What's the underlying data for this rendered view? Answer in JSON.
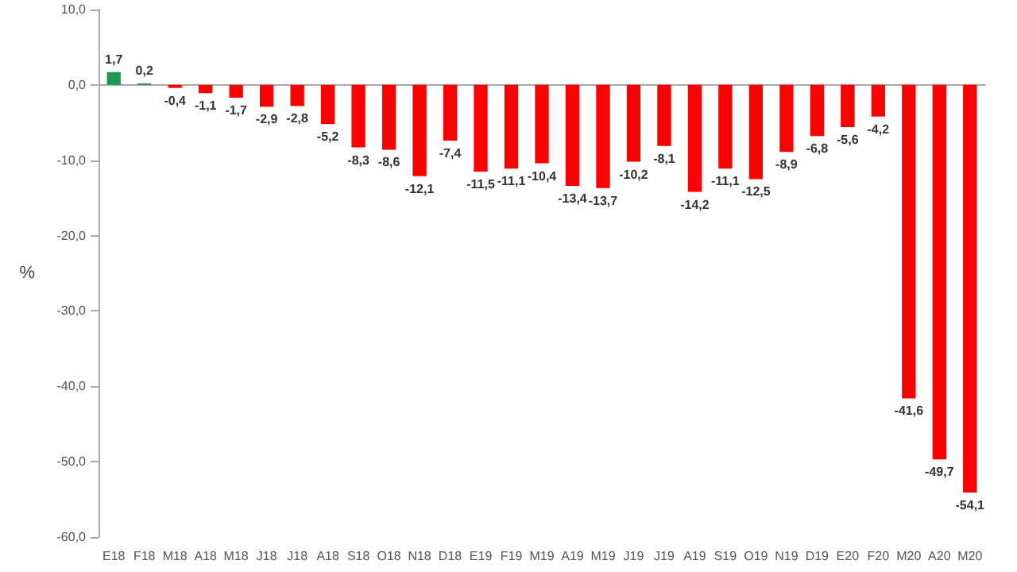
{
  "chart_data": {
    "type": "bar",
    "ylabel": "%",
    "categories": [
      "E18",
      "F18",
      "M18",
      "A18",
      "M18",
      "J18",
      "J18",
      "A18",
      "S18",
      "O18",
      "N18",
      "D18",
      "E19",
      "F19",
      "M19",
      "A19",
      "M19",
      "J19",
      "J19",
      "A19",
      "S19",
      "O19",
      "N19",
      "D19",
      "E20",
      "F20",
      "M20",
      "A20",
      "M20"
    ],
    "values": [
      1.7,
      0.2,
      -0.4,
      -1.1,
      -1.7,
      -2.9,
      -2.8,
      -5.2,
      -8.3,
      -8.6,
      -12.1,
      -7.4,
      -11.5,
      -11.1,
      -10.4,
      -13.4,
      -13.7,
      -10.2,
      -8.1,
      -14.2,
      -11.1,
      -12.5,
      -8.9,
      -6.8,
      -5.6,
      -4.2,
      -41.6,
      -49.7,
      -54.1
    ],
    "value_labels": [
      "1,7",
      "0,2",
      "-0,4",
      "-1,1",
      "-1,7",
      "-2,9",
      "-2,8",
      "-5,2",
      "-8,3",
      "-8,6",
      "-12,1",
      "-7,4",
      "-11,5",
      "-11,1",
      "-10,4",
      "-13,4",
      "-13,7",
      "-10,2",
      "-8,1",
      "-14,2",
      "-11,1",
      "-12,5",
      "-8,9",
      "-6,8",
      "-5,6",
      "-4,2",
      "-41,6",
      "-49,7",
      "-54,1"
    ],
    "colors": [
      "#1a9a50",
      "#1a9a50",
      "#ff0000",
      "#ff0000",
      "#ff0000",
      "#ff0000",
      "#ff0000",
      "#ff0000",
      "#ff0000",
      "#ff0000",
      "#ff0000",
      "#ff0000",
      "#ff0000",
      "#ff0000",
      "#ff0000",
      "#ff0000",
      "#ff0000",
      "#ff0000",
      "#ff0000",
      "#ff0000",
      "#ff0000",
      "#ff0000",
      "#ff0000",
      "#ff0000",
      "#ff0000",
      "#ff0000",
      "#ff0000",
      "#ff0000",
      "#ff0000"
    ],
    "ylim": [
      -60,
      10
    ],
    "yticks": [
      {
        "value": -60,
        "label": "-60,0"
      },
      {
        "value": -50,
        "label": "-50,0"
      },
      {
        "value": -40,
        "label": "-40,0"
      },
      {
        "value": -30,
        "label": "-30,0"
      },
      {
        "value": -20,
        "label": "-20,0"
      },
      {
        "value": -10,
        "label": "-10,0"
      },
      {
        "value": 0,
        "label": "0,0"
      },
      {
        "value": 10,
        "label": "10,0"
      }
    ]
  }
}
